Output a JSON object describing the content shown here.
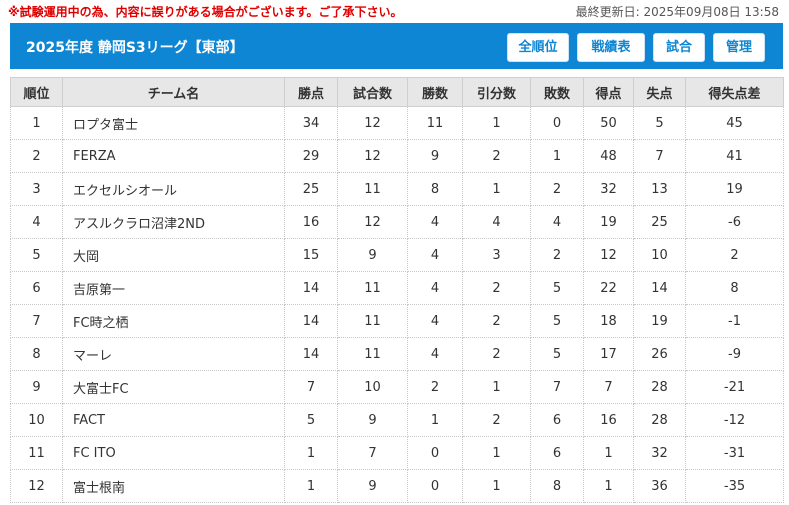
{
  "notice": "※試験運用中の為、内容に誤りがある場合がございます。ご了承下さい。",
  "updated": "最終更新日: 2025年09月08日 13:58",
  "header": {
    "title": "2025年度 静岡S3リーグ【東部】",
    "buttons": [
      "全順位",
      "戦績表",
      "試合",
      "管理"
    ]
  },
  "table": {
    "columns": [
      "順位",
      "チーム名",
      "勝点",
      "試合数",
      "勝数",
      "引分数",
      "敗数",
      "得点",
      "失点",
      "得失点差"
    ],
    "rows": [
      [
        "1",
        "ロプタ富士",
        "34",
        "12",
        "11",
        "1",
        "0",
        "50",
        "5",
        "45"
      ],
      [
        "2",
        "FERZA",
        "29",
        "12",
        "9",
        "2",
        "1",
        "48",
        "7",
        "41"
      ],
      [
        "3",
        "エクセルシオール",
        "25",
        "11",
        "8",
        "1",
        "2",
        "32",
        "13",
        "19"
      ],
      [
        "4",
        "アスルクラロ沼津2ND",
        "16",
        "12",
        "4",
        "4",
        "4",
        "19",
        "25",
        "-6"
      ],
      [
        "5",
        "大岡",
        "15",
        "9",
        "4",
        "3",
        "2",
        "12",
        "10",
        "2"
      ],
      [
        "6",
        "吉原第一",
        "14",
        "11",
        "4",
        "2",
        "5",
        "22",
        "14",
        "8"
      ],
      [
        "7",
        "FC時之栖",
        "14",
        "11",
        "4",
        "2",
        "5",
        "18",
        "19",
        "-1"
      ],
      [
        "8",
        "マーレ",
        "14",
        "11",
        "4",
        "2",
        "5",
        "17",
        "26",
        "-9"
      ],
      [
        "9",
        "大富士FC",
        "7",
        "10",
        "2",
        "1",
        "7",
        "7",
        "28",
        "-21"
      ],
      [
        "10",
        "FACT",
        "5",
        "9",
        "1",
        "2",
        "6",
        "16",
        "28",
        "-12"
      ],
      [
        "11",
        "FC ITO",
        "1",
        "7",
        "0",
        "1",
        "6",
        "1",
        "32",
        "-31"
      ],
      [
        "12",
        "富士根南",
        "1",
        "9",
        "0",
        "1",
        "8",
        "1",
        "36",
        "-35"
      ]
    ]
  }
}
